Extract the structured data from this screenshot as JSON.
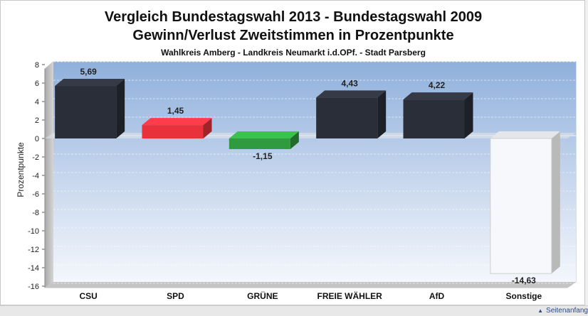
{
  "chart_data": {
    "type": "bar",
    "title": "Vergleich Bundestagswahl 2013 - Bundestagswahl 2009",
    "subtitle_line": "Gewinn/Verlust Zweitstimmen in Prozentpunkte",
    "subtitle": "Wahlkreis Amberg - Landkreis Neumarkt i.d.OPf. - Stadt Parsberg",
    "ylabel": "Prozentpunkte",
    "xlabel": "",
    "ylim": [
      -16,
      8
    ],
    "yticks": [
      "8",
      "6",
      "4",
      "2",
      "0",
      "-2",
      "-4",
      "-6",
      "-8",
      "-10",
      "-12",
      "-14",
      "-16"
    ],
    "grid": true,
    "categories": [
      "CSU",
      "SPD",
      "GRÜNE",
      "FREIE WÄHLER",
      "AfD",
      "Sonstige"
    ],
    "values": [
      5.69,
      1.45,
      -1.15,
      4.43,
      4.22,
      -14.63
    ],
    "value_labels": [
      "5,69",
      "1,45",
      "-1,15",
      "4,43",
      "4,22",
      "-14,63"
    ],
    "colors": [
      "#2a2e38",
      "#e8313b",
      "#2f9a3e",
      "#2a2e38",
      "#2a2e38",
      "#f6f8fb"
    ]
  },
  "footer": {
    "link_label": "Seitenanfang",
    "link_icon": "arrow-up-icon"
  }
}
